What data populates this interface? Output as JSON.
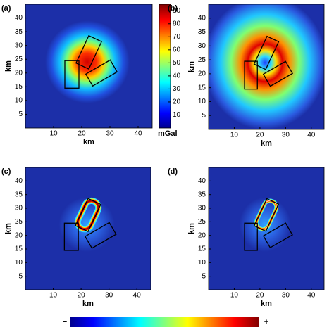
{
  "chart_data": [
    {
      "type": "heatmap",
      "panel": "(a)",
      "xlabel": "km",
      "ylabel": "km",
      "xlim": [
        0,
        45
      ],
      "ylim": [
        0,
        45
      ],
      "xticks": [
        10,
        20,
        30,
        40
      ],
      "yticks": [
        5,
        10,
        15,
        20,
        25,
        30,
        35,
        40
      ],
      "colorbar": {
        "label": "mGal",
        "lim": [
          0,
          95
        ],
        "ticks": [
          10,
          20,
          30,
          40,
          50,
          60,
          70,
          80,
          90
        ]
      }
    },
    {
      "type": "heatmap",
      "panel": "(b)",
      "xlabel": "km",
      "ylabel": "km",
      "xlim": [
        0,
        45
      ],
      "ylim": [
        0,
        45
      ],
      "xticks": [
        10,
        20,
        30,
        40
      ],
      "yticks": [
        5,
        10,
        15,
        20,
        25,
        30,
        35,
        40
      ]
    },
    {
      "type": "heatmap",
      "panel": "(c)",
      "xlabel": "km",
      "ylabel": "km",
      "xlim": [
        0,
        45
      ],
      "ylim": [
        0,
        45
      ],
      "xticks": [
        10,
        20,
        30,
        40
      ],
      "yticks": [
        5,
        10,
        15,
        20,
        25,
        30,
        35,
        40
      ]
    },
    {
      "type": "heatmap",
      "panel": "(d)",
      "xlabel": "km",
      "ylabel": "km",
      "xlim": [
        0,
        45
      ],
      "ylim": [
        0,
        45
      ],
      "xticks": [
        10,
        20,
        30,
        40
      ],
      "yticks": [
        5,
        10,
        15,
        20,
        25,
        30,
        35,
        40
      ]
    }
  ],
  "scale_key": {
    "low": "−",
    "high": "+"
  }
}
